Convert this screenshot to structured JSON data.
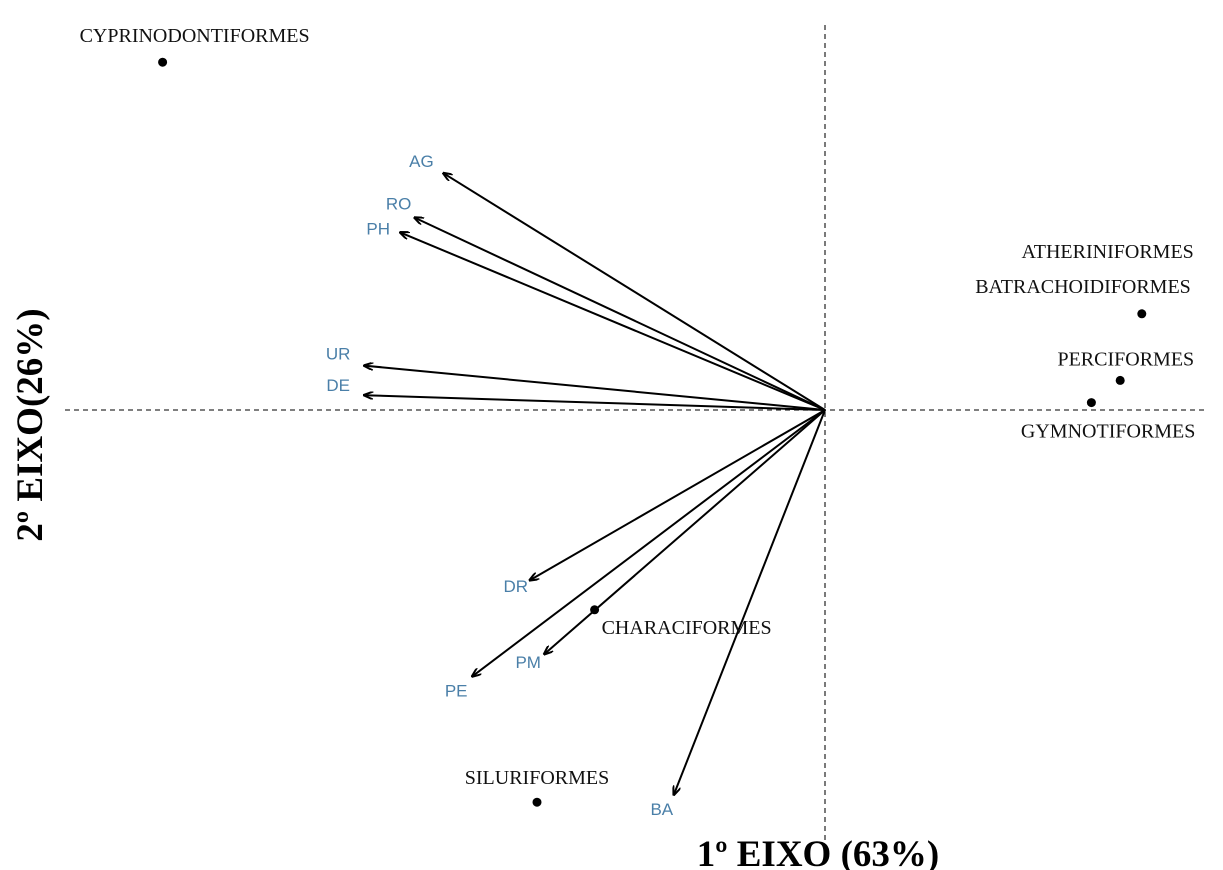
{
  "chart_data": {
    "type": "scatter",
    "subtype": "biplot",
    "title": "",
    "xlabel": "1º EIXO (63%)",
    "ylabel": "2º EIXO(26%)",
    "xlim": [
      -1.0,
      0.5
    ],
    "ylim": [
      -0.55,
      0.5
    ],
    "grid": false,
    "legend": "none",
    "axis_lines": "dashed",
    "colors": {
      "variable_label": "#4a7fa8",
      "vector": "#000000",
      "group_label": "#111111",
      "axis": "#333333"
    },
    "vectors": [
      {
        "label": "AG",
        "x": -0.53,
        "y": 0.32
      },
      {
        "label": "RO",
        "x": -0.57,
        "y": 0.26
      },
      {
        "label": "PH",
        "x": -0.59,
        "y": 0.24
      },
      {
        "label": "UR",
        "x": -0.64,
        "y": 0.06
      },
      {
        "label": "DE",
        "x": -0.64,
        "y": 0.02
      },
      {
        "label": "DR",
        "x": -0.41,
        "y": -0.23
      },
      {
        "label": "PM",
        "x": -0.39,
        "y": -0.33
      },
      {
        "label": "PE",
        "x": -0.49,
        "y": -0.36
      },
      {
        "label": "BA",
        "x": -0.21,
        "y": -0.52
      }
    ],
    "groups": [
      {
        "label": "CYPRINODONTIFORMES",
        "x": -0.92,
        "y": 0.47
      },
      {
        "label": "ATHERINIFORMES",
        "x": 0.44,
        "y": 0.13
      },
      {
        "label": "BATRACHOIDIFORMES",
        "x": 0.44,
        "y": 0.13
      },
      {
        "label": "PERCIFORMES",
        "x": 0.41,
        "y": 0.04
      },
      {
        "label": "GYMNOTIFORMES",
        "x": 0.37,
        "y": 0.01
      },
      {
        "label": "CHARACIFORMES",
        "x": -0.32,
        "y": -0.27
      },
      {
        "label": "SILURIFORMES",
        "x": -0.4,
        "y": -0.53
      }
    ]
  }
}
